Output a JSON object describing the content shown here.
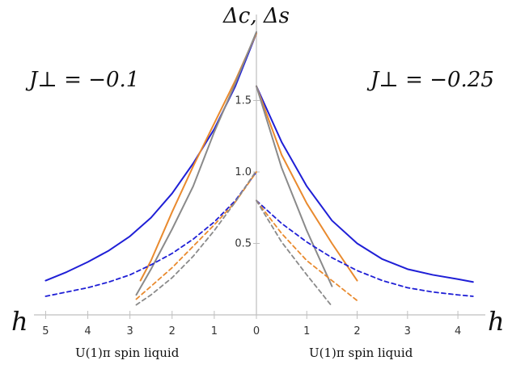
{
  "chart_data": {
    "type": "line",
    "ylabel": "Δc, Δs",
    "xlabel_left": "h",
    "xlabel_right": "h",
    "left_panel_label": "J⊥ = −0.1",
    "right_panel_label": "J⊥ = −0.25",
    "left_region_label": "U(1)π spin liquid",
    "right_region_label": "U(1)π spin liquid",
    "x_left_ticks": [
      "5",
      "4",
      "3",
      "2",
      "1",
      "0"
    ],
    "x_right_ticks": [
      "1",
      "2",
      "3",
      "4"
    ],
    "y_ticks": [
      "0.5",
      "1.0",
      "1.5"
    ],
    "x_left_range": [
      5.2,
      0
    ],
    "x_right_range": [
      0,
      4.4
    ],
    "y_range": [
      0.0,
      2.0
    ],
    "colors": {
      "blue": "#1f1fd6",
      "orange": "#e98a2e",
      "gray": "#8a8a8a",
      "axis": "#bfbfbf",
      "tick_text": "#333333"
    },
    "left_series": [
      {
        "style": "solid",
        "color": "blue",
        "points": [
          [
            5.0,
            0.24
          ],
          [
            4.5,
            0.3
          ],
          [
            4.0,
            0.37
          ],
          [
            3.5,
            0.45
          ],
          [
            3.0,
            0.55
          ],
          [
            2.5,
            0.68
          ],
          [
            2.0,
            0.85
          ],
          [
            1.5,
            1.06
          ],
          [
            1.0,
            1.3
          ],
          [
            0.5,
            1.6
          ],
          [
            0.0,
            1.97
          ]
        ]
      },
      {
        "style": "solid",
        "color": "orange",
        "points": [
          [
            2.75,
            0.24
          ],
          [
            2.5,
            0.38
          ],
          [
            2.0,
            0.72
          ],
          [
            1.5,
            1.04
          ],
          [
            1.0,
            1.34
          ],
          [
            0.5,
            1.64
          ],
          [
            0.0,
            1.97
          ]
        ]
      },
      {
        "style": "solid",
        "color": "gray",
        "points": [
          [
            2.85,
            0.14
          ],
          [
            2.5,
            0.32
          ],
          [
            2.0,
            0.6
          ],
          [
            1.5,
            0.9
          ],
          [
            1.0,
            1.28
          ],
          [
            0.5,
            1.62
          ],
          [
            0.0,
            1.98
          ]
        ]
      },
      {
        "style": "dashed",
        "color": "blue",
        "points": [
          [
            5.0,
            0.13
          ],
          [
            4.5,
            0.16
          ],
          [
            4.0,
            0.19
          ],
          [
            3.5,
            0.23
          ],
          [
            3.0,
            0.28
          ],
          [
            2.5,
            0.35
          ],
          [
            2.0,
            0.43
          ],
          [
            1.5,
            0.53
          ],
          [
            1.0,
            0.65
          ],
          [
            0.5,
            0.8
          ],
          [
            0.0,
            1.0
          ]
        ]
      },
      {
        "style": "dashed",
        "color": "orange",
        "points": [
          [
            2.85,
            0.11
          ],
          [
            2.5,
            0.2
          ],
          [
            2.0,
            0.33
          ],
          [
            1.5,
            0.48
          ],
          [
            1.0,
            0.63
          ],
          [
            0.5,
            0.79
          ],
          [
            0.0,
            1.0
          ]
        ]
      },
      {
        "style": "dashed",
        "color": "gray",
        "points": [
          [
            2.85,
            0.07
          ],
          [
            2.5,
            0.14
          ],
          [
            2.0,
            0.26
          ],
          [
            1.5,
            0.41
          ],
          [
            1.0,
            0.59
          ],
          [
            0.5,
            0.79
          ],
          [
            0.0,
            1.01
          ]
        ]
      }
    ],
    "right_series": [
      {
        "style": "solid",
        "color": "blue",
        "points": [
          [
            0.0,
            1.6
          ],
          [
            0.5,
            1.21
          ],
          [
            1.0,
            0.9
          ],
          [
            1.5,
            0.66
          ],
          [
            2.0,
            0.5
          ],
          [
            2.5,
            0.39
          ],
          [
            3.0,
            0.32
          ],
          [
            3.5,
            0.28
          ],
          [
            4.0,
            0.25
          ],
          [
            4.3,
            0.23
          ]
        ]
      },
      {
        "style": "solid",
        "color": "orange",
        "points": [
          [
            0.0,
            1.6
          ],
          [
            0.5,
            1.12
          ],
          [
            1.0,
            0.78
          ],
          [
            1.5,
            0.5
          ],
          [
            2.0,
            0.24
          ]
        ]
      },
      {
        "style": "solid",
        "color": "gray",
        "points": [
          [
            0.0,
            1.6
          ],
          [
            0.5,
            1.03
          ],
          [
            1.0,
            0.59
          ],
          [
            1.5,
            0.2
          ]
        ]
      },
      {
        "style": "dashed",
        "color": "blue",
        "points": [
          [
            0.0,
            0.8
          ],
          [
            0.5,
            0.64
          ],
          [
            1.0,
            0.51
          ],
          [
            1.5,
            0.4
          ],
          [
            2.0,
            0.31
          ],
          [
            2.5,
            0.24
          ],
          [
            3.0,
            0.19
          ],
          [
            3.5,
            0.16
          ],
          [
            4.0,
            0.14
          ],
          [
            4.3,
            0.13
          ]
        ]
      },
      {
        "style": "dashed",
        "color": "orange",
        "points": [
          [
            0.0,
            0.8
          ],
          [
            0.5,
            0.57
          ],
          [
            1.0,
            0.38
          ],
          [
            1.5,
            0.24
          ],
          [
            2.0,
            0.1
          ]
        ]
      },
      {
        "style": "dashed",
        "color": "gray",
        "points": [
          [
            0.0,
            0.8
          ],
          [
            0.5,
            0.51
          ],
          [
            1.0,
            0.28
          ],
          [
            1.5,
            0.06
          ]
        ]
      }
    ]
  }
}
